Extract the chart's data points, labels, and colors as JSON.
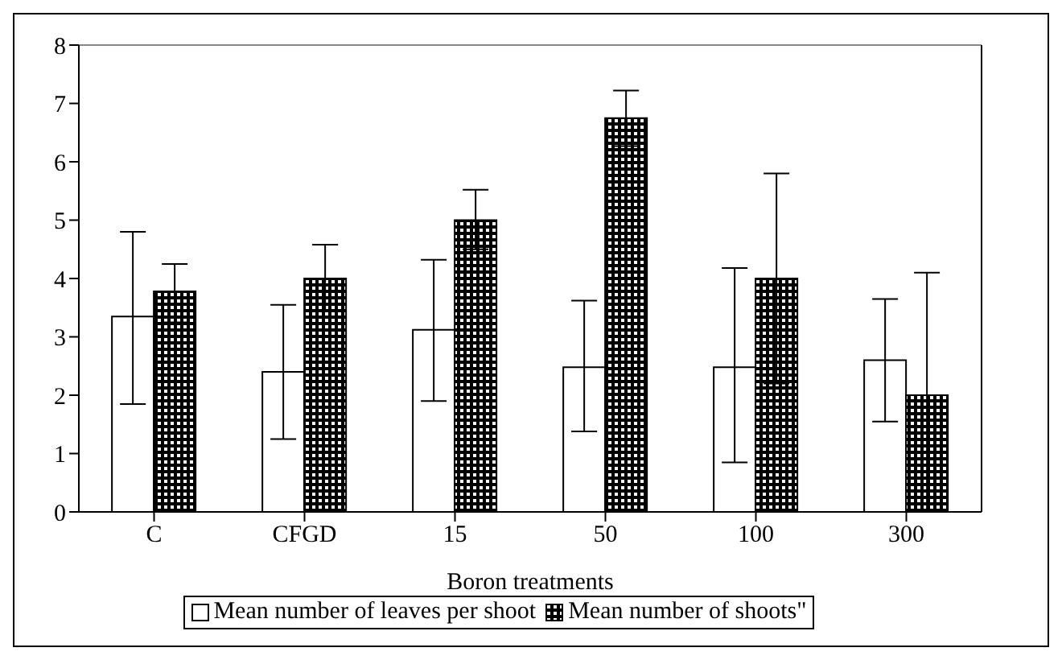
{
  "chart_data": {
    "type": "bar",
    "xlabel": "Boron treatments",
    "categories": [
      "C",
      "CFGD",
      "15",
      "50",
      "100",
      "300"
    ],
    "series": [
      {
        "name": "Mean number of leaves per shoot",
        "color": "#ffffff",
        "values": [
          3.35,
          2.4,
          3.12,
          2.48,
          2.48,
          2.6
        ],
        "errors": [
          [
            1.85,
            4.8
          ],
          [
            1.25,
            3.55
          ],
          [
            1.9,
            4.32
          ],
          [
            1.38,
            3.62
          ],
          [
            0.85,
            4.18
          ],
          [
            1.55,
            3.65
          ]
        ]
      },
      {
        "name": "Mean number of shoots\"",
        "color": "#000000",
        "values": [
          3.78,
          4.0,
          5.0,
          6.75,
          4.0,
          2.0
        ],
        "errors": [
          [
            3.25,
            4.25
          ],
          [
            3.45,
            4.58
          ],
          [
            4.5,
            5.52
          ],
          [
            6.27,
            7.22
          ],
          [
            2.2,
            5.8
          ],
          [
            0,
            4.1
          ]
        ]
      }
    ],
    "ylim": [
      0,
      8
    ],
    "yticks": [
      0,
      1,
      2,
      3,
      4,
      5,
      6,
      7,
      8
    ],
    "grid": false,
    "legend": "bottom"
  }
}
